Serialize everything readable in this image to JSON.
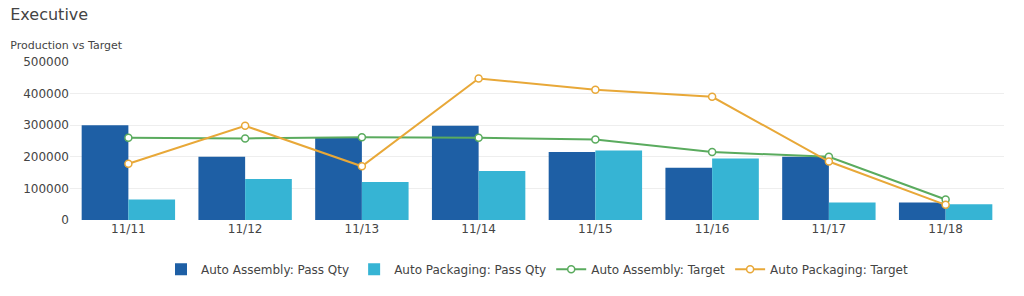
{
  "chart_data": {
    "type": "bar",
    "title": "Executive",
    "subtitle": "Production vs Target",
    "categories": [
      "11/11",
      "11/12",
      "11/13",
      "11/14",
      "11/15",
      "11/16",
      "11/17",
      "11/18"
    ],
    "series": [
      {
        "name": "Auto Assembly: Pass Qty",
        "type": "bar",
        "color": "#1e5fa5",
        "values": [
          300000,
          200000,
          260000,
          298000,
          215000,
          165000,
          200000,
          55000
        ]
      },
      {
        "name": "Auto Packaging: Pass Qty",
        "type": "bar",
        "color": "#36b4d4",
        "values": [
          65000,
          130000,
          120000,
          155000,
          220000,
          195000,
          55000,
          50000
        ]
      },
      {
        "name": "Auto Assembly: Target",
        "type": "line",
        "color": "#5aab5e",
        "marker": "o",
        "values": [
          260000,
          258000,
          262000,
          260000,
          255000,
          215000,
          200000,
          65000
        ]
      },
      {
        "name": "Auto Packaging: Target",
        "type": "line",
        "color": "#e8a838",
        "marker": "o",
        "values": [
          178000,
          298000,
          170000,
          448000,
          412000,
          390000,
          185000,
          48000
        ]
      }
    ],
    "ylim": [
      0,
      500000
    ],
    "yticks": [
      0,
      100000,
      200000,
      300000,
      400000,
      500000
    ],
    "grid": true,
    "legend": "bottom"
  }
}
